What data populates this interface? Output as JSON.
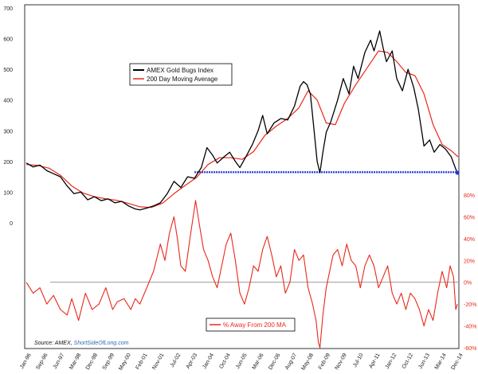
{
  "chart_data": [
    {
      "type": "line",
      "title": "",
      "xlabel": "",
      "ylabel": "",
      "ylim": [
        0,
        700
      ],
      "y_ticks": [
        0,
        100,
        200,
        300,
        400,
        500,
        600,
        700
      ],
      "x_ticks": [
        "Jan-96",
        "Sep-96",
        "Jun-97",
        "Mar-98",
        "Dec-98",
        "Sep-99",
        "May-00",
        "Feb-01",
        "Nov-01",
        "Jul-02",
        "Apr-03",
        "Jan-04",
        "Oct-04",
        "Jun-05",
        "Mar-06",
        "Dec-06",
        "Aug-07",
        "May-08",
        "Feb-09",
        "Nov-09",
        "Jul-10",
        "Apr-11",
        "Jan-12",
        "Oct-12",
        "Jun-13",
        "Mar-14",
        "Dec-14"
      ],
      "legend_position": "top-left",
      "grid": false,
      "series": [
        {
          "name": "AMEX Gold Bugs Index",
          "color": "#000000",
          "points": [
            [
              1996.0,
              195
            ],
            [
              1996.3,
              182
            ],
            [
              1996.6,
              188
            ],
            [
              1996.9,
              170
            ],
            [
              1997.2,
              160
            ],
            [
              1997.5,
              150
            ],
            [
              1997.8,
              120
            ],
            [
              1998.1,
              95
            ],
            [
              1998.4,
              100
            ],
            [
              1998.7,
              75
            ],
            [
              1999.0,
              85
            ],
            [
              1999.3,
              72
            ],
            [
              1999.6,
              78
            ],
            [
              1999.9,
              65
            ],
            [
              2000.2,
              70
            ],
            [
              2000.5,
              55
            ],
            [
              2000.8,
              45
            ],
            [
              2001.0,
              42
            ],
            [
              2001.3,
              48
            ],
            [
              2001.6,
              55
            ],
            [
              2001.9,
              65
            ],
            [
              2002.2,
              95
            ],
            [
              2002.5,
              135
            ],
            [
              2002.8,
              115
            ],
            [
              2003.1,
              150
            ],
            [
              2003.4,
              145
            ],
            [
              2003.7,
              180
            ],
            [
              2003.95,
              245
            ],
            [
              2004.2,
              220
            ],
            [
              2004.4,
              195
            ],
            [
              2004.7,
              215
            ],
            [
              2004.95,
              230
            ],
            [
              2005.2,
              200
            ],
            [
              2005.4,
              180
            ],
            [
              2005.7,
              220
            ],
            [
              2005.95,
              255
            ],
            [
              2006.2,
              300
            ],
            [
              2006.4,
              350
            ],
            [
              2006.6,
              290
            ],
            [
              2006.9,
              325
            ],
            [
              2007.2,
              340
            ],
            [
              2007.5,
              335
            ],
            [
              2007.8,
              380
            ],
            [
              2008.05,
              445
            ],
            [
              2008.2,
              460
            ],
            [
              2008.35,
              450
            ],
            [
              2008.5,
              420
            ],
            [
              2008.65,
              310
            ],
            [
              2008.8,
              200
            ],
            [
              2008.92,
              163
            ],
            [
              2009.05,
              230
            ],
            [
              2009.2,
              295
            ],
            [
              2009.4,
              330
            ],
            [
              2009.7,
              400
            ],
            [
              2009.95,
              470
            ],
            [
              2010.2,
              420
            ],
            [
              2010.4,
              510
            ],
            [
              2010.6,
              470
            ],
            [
              2010.9,
              555
            ],
            [
              2011.15,
              595
            ],
            [
              2011.3,
              560
            ],
            [
              2011.55,
              625
            ],
            [
              2011.7,
              570
            ],
            [
              2011.85,
              525
            ],
            [
              2012.1,
              560
            ],
            [
              2012.3,
              470
            ],
            [
              2012.55,
              430
            ],
            [
              2012.8,
              500
            ],
            [
              2013.05,
              440
            ],
            [
              2013.25,
              370
            ],
            [
              2013.5,
              250
            ],
            [
              2013.75,
              270
            ],
            [
              2013.95,
              230
            ],
            [
              2014.2,
              255
            ],
            [
              2014.45,
              240
            ],
            [
              2014.7,
              215
            ],
            [
              2014.9,
              175
            ],
            [
              2014.97,
              163
            ]
          ]
        },
        {
          "name": "200 Day Moving Average",
          "color": "#e8281a",
          "points": [
            [
              1996.0,
              190
            ],
            [
              1996.5,
              187
            ],
            [
              1997.0,
              178
            ],
            [
              1997.5,
              155
            ],
            [
              1998.0,
              120
            ],
            [
              1998.5,
              97
            ],
            [
              1999.0,
              85
            ],
            [
              1999.5,
              78
            ],
            [
              2000.0,
              73
            ],
            [
              2000.5,
              63
            ],
            [
              2001.0,
              52
            ],
            [
              2001.5,
              50
            ],
            [
              2002.0,
              64
            ],
            [
              2002.5,
              95
            ],
            [
              2003.0,
              122
            ],
            [
              2003.5,
              148
            ],
            [
              2004.0,
              190
            ],
            [
              2004.5,
              212
            ],
            [
              2005.0,
              212
            ],
            [
              2005.5,
              207
            ],
            [
              2006.0,
              232
            ],
            [
              2006.5,
              285
            ],
            [
              2007.0,
              315
            ],
            [
              2007.5,
              340
            ],
            [
              2008.0,
              375
            ],
            [
              2008.4,
              430
            ],
            [
              2008.8,
              400
            ],
            [
              2009.2,
              325
            ],
            [
              2009.6,
              320
            ],
            [
              2010.0,
              390
            ],
            [
              2010.5,
              450
            ],
            [
              2011.0,
              505
            ],
            [
              2011.5,
              560
            ],
            [
              2011.9,
              555
            ],
            [
              2012.3,
              525
            ],
            [
              2012.7,
              490
            ],
            [
              2013.1,
              480
            ],
            [
              2013.5,
              420
            ],
            [
              2013.9,
              320
            ],
            [
              2014.3,
              255
            ],
            [
              2014.7,
              235
            ],
            [
              2015.0,
              215
            ]
          ]
        }
      ],
      "annotations": [
        {
          "type": "support-line",
          "color": "#2233dd",
          "y": 165,
          "x_start": 2003.4,
          "x_end": 2015.0
        }
      ]
    },
    {
      "type": "line",
      "title": "",
      "xlabel": "",
      "ylabel": "",
      "ylim": [
        -60,
        80
      ],
      "y_ticks": [
        -60,
        -40,
        -20,
        0,
        20,
        40,
        60,
        80
      ],
      "y_tick_labels": [
        "-60%",
        "-40%",
        "-20%",
        "0%",
        "20%",
        "40%",
        "60%",
        "80%"
      ],
      "legend_position": "bottom-left",
      "grid": false,
      "zero_line": true,
      "series": [
        {
          "name": "% Away From 200 MA",
          "color": "#e8281a",
          "points": [
            [
              1996.0,
              0
            ],
            [
              1996.3,
              -10
            ],
            [
              1996.6,
              -5
            ],
            [
              1996.9,
              -20
            ],
            [
              1997.2,
              -12
            ],
            [
              1997.5,
              -25
            ],
            [
              1997.8,
              -30
            ],
            [
              1998.0,
              -15
            ],
            [
              1998.3,
              -35
            ],
            [
              1998.6,
              -10
            ],
            [
              1998.9,
              -25
            ],
            [
              1999.2,
              -20
            ],
            [
              1999.5,
              -5
            ],
            [
              1999.8,
              -25
            ],
            [
              2000.0,
              -18
            ],
            [
              2000.3,
              -15
            ],
            [
              2000.6,
              -25
            ],
            [
              2000.8,
              -15
            ],
            [
              2001.0,
              -20
            ],
            [
              2001.3,
              -5
            ],
            [
              2001.6,
              10
            ],
            [
              2001.9,
              35
            ],
            [
              2002.1,
              20
            ],
            [
              2002.3,
              45
            ],
            [
              2002.5,
              60
            ],
            [
              2002.65,
              40
            ],
            [
              2002.8,
              15
            ],
            [
              2003.0,
              10
            ],
            [
              2003.2,
              40
            ],
            [
              2003.45,
              75
            ],
            [
              2003.6,
              55
            ],
            [
              2003.8,
              30
            ],
            [
              2004.0,
              20
            ],
            [
              2004.2,
              5
            ],
            [
              2004.4,
              -5
            ],
            [
              2004.6,
              15
            ],
            [
              2004.8,
              35
            ],
            [
              2005.0,
              45
            ],
            [
              2005.2,
              20
            ],
            [
              2005.4,
              -10
            ],
            [
              2005.6,
              -20
            ],
            [
              2005.8,
              -5
            ],
            [
              2006.0,
              15
            ],
            [
              2006.2,
              10
            ],
            [
              2006.4,
              30
            ],
            [
              2006.6,
              42
            ],
            [
              2006.8,
              25
            ],
            [
              2007.0,
              5
            ],
            [
              2007.2,
              15
            ],
            [
              2007.4,
              -10
            ],
            [
              2007.6,
              0
            ],
            [
              2007.8,
              30
            ],
            [
              2008.0,
              20
            ],
            [
              2008.2,
              25
            ],
            [
              2008.4,
              -5
            ],
            [
              2008.6,
              -20
            ],
            [
              2008.75,
              -35
            ],
            [
              2008.85,
              -55
            ],
            [
              2008.92,
              -60
            ],
            [
              2009.05,
              -30
            ],
            [
              2009.2,
              -5
            ],
            [
              2009.35,
              10
            ],
            [
              2009.5,
              25
            ],
            [
              2009.7,
              30
            ],
            [
              2009.9,
              15
            ],
            [
              2010.1,
              35
            ],
            [
              2010.3,
              20
            ],
            [
              2010.5,
              15
            ],
            [
              2010.7,
              -5
            ],
            [
              2010.9,
              15
            ],
            [
              2011.1,
              25
            ],
            [
              2011.3,
              15
            ],
            [
              2011.5,
              -5
            ],
            [
              2011.7,
              5
            ],
            [
              2011.9,
              15
            ],
            [
              2012.1,
              -10
            ],
            [
              2012.3,
              -20
            ],
            [
              2012.5,
              -10
            ],
            [
              2012.7,
              -25
            ],
            [
              2012.9,
              -10
            ],
            [
              2013.1,
              -15
            ],
            [
              2013.3,
              -25
            ],
            [
              2013.5,
              -40
            ],
            [
              2013.7,
              -25
            ],
            [
              2013.9,
              -35
            ],
            [
              2014.1,
              -10
            ],
            [
              2014.3,
              10
            ],
            [
              2014.5,
              -5
            ],
            [
              2014.65,
              15
            ],
            [
              2014.8,
              5
            ],
            [
              2014.9,
              -25
            ],
            [
              2014.97,
              -20
            ]
          ]
        }
      ]
    }
  ],
  "source_prefix": "Source: AMEX, ",
  "source_brand": "ShortSideOfLong.com"
}
